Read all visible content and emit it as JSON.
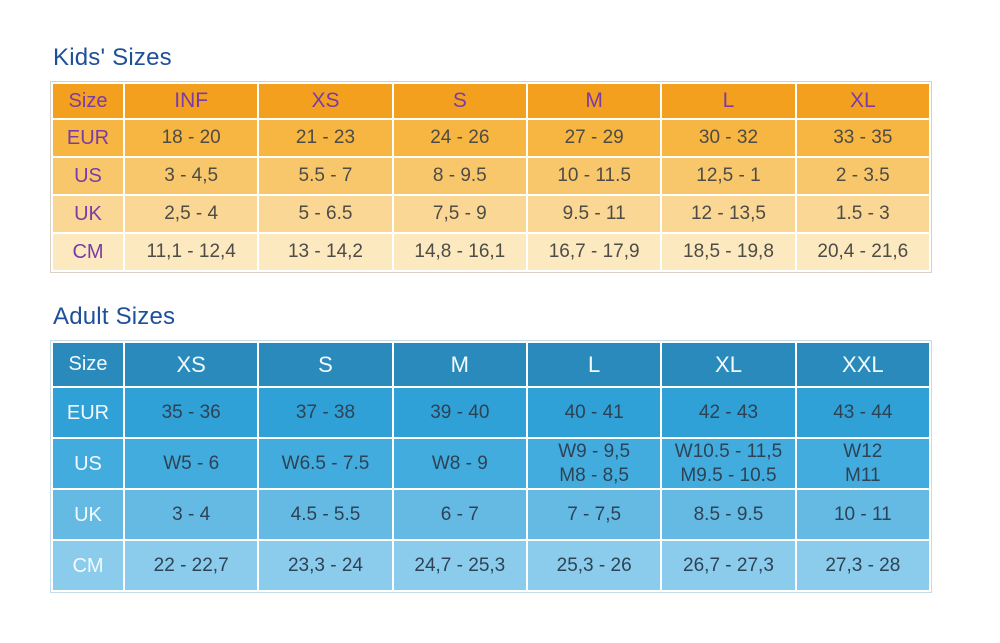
{
  "chart_data": [
    {
      "type": "table",
      "title": "Kids' Sizes",
      "columns": [
        "Size",
        "INF",
        "XS",
        "S",
        "M",
        "L",
        "XL"
      ],
      "rows": [
        {
          "label": "EUR",
          "values": [
            "18 - 20",
            "21 - 23",
            "24 - 26",
            "27 - 29",
            "30 - 32",
            "33 - 35"
          ]
        },
        {
          "label": "US",
          "values": [
            "3 - 4,5",
            "5.5 - 7",
            "8 - 9.5",
            "10 - 11.5",
            "12,5 - 1",
            "2 - 3.5"
          ]
        },
        {
          "label": "UK",
          "values": [
            "2,5 - 4",
            "5 - 6.5",
            "7,5 - 9",
            "9.5 - 11",
            "12 - 13,5",
            "1.5 - 3"
          ]
        },
        {
          "label": "CM",
          "values": [
            "11,1 - 12,4",
            "13 - 14,2",
            "14,8 - 16,1",
            "16,7 - 17,9",
            "18,5 - 19,8",
            "20,4 - 21,6"
          ]
        }
      ],
      "style": {
        "title_color": "#1e4f99",
        "header_bg": "#f3a01f",
        "header_text": "#7b3ba7",
        "label_text": "#7b3ba7",
        "value_text": "#4d4c46",
        "row_bgs": [
          "#f7b541",
          "#f9c76b",
          "#fad795",
          "#fce9c0"
        ],
        "outer_border": "#d8d2c6"
      }
    },
    {
      "type": "table",
      "title": "Adult Sizes",
      "columns": [
        "Size",
        "XS",
        "S",
        "M",
        "L",
        "XL",
        "XXL"
      ],
      "rows": [
        {
          "label": "EUR",
          "values": [
            "35 - 36",
            "37 - 38",
            "39 - 40",
            "40 - 41",
            "42 - 43",
            "43 - 44"
          ]
        },
        {
          "label": "US",
          "values": [
            "W5 - 6",
            "W6.5 - 7.5",
            "W8 - 9",
            "W9 - 9,5\nM8 - 8,5",
            "W10.5 - 11,5\nM9.5 - 10.5",
            "W12\nM11"
          ]
        },
        {
          "label": "UK",
          "values": [
            "3 - 4",
            "4.5 - 5.5",
            "6 - 7",
            "7 - 7,5",
            "8.5 - 9.5",
            "10 - 11"
          ]
        },
        {
          "label": "CM",
          "values": [
            "22 - 22,7",
            "23,3 - 24",
            "24,7 - 25,3",
            "25,3 - 26",
            "26,7 - 27,3",
            "27,3 - 28"
          ]
        }
      ],
      "style": {
        "title_color": "#1e4f99",
        "header_bg": "#2b8abc",
        "header_text": "#f2fafd",
        "label_text": "#f2fafd",
        "value_text": "#2d4355",
        "row_bgs": [
          "#2fa1d6",
          "#43acde",
          "#65bae4",
          "#8bccec"
        ],
        "outer_border": "#c6dde9"
      }
    }
  ]
}
